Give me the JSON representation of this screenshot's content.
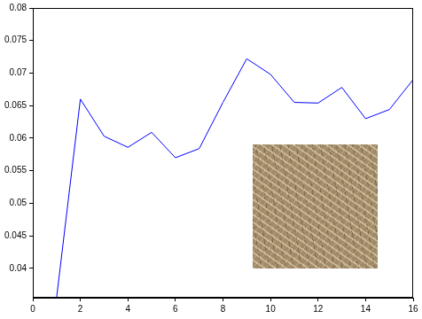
{
  "chart_data": {
    "type": "line",
    "x": [
      1,
      2,
      3,
      4,
      5,
      6,
      7,
      8,
      9,
      10,
      11,
      12,
      13,
      14,
      15,
      16
    ],
    "values": [
      0.0355,
      0.066,
      0.0603,
      0.0586,
      0.0609,
      0.057,
      0.0584,
      0.0655,
      0.0722,
      0.0698,
      0.0655,
      0.0654,
      0.0678,
      0.063,
      0.0644,
      0.069
    ],
    "color": "#0000ff",
    "xlim": [
      0,
      16
    ],
    "xticks": [
      0,
      2,
      4,
      6,
      8,
      10,
      12,
      14,
      16
    ],
    "ylim": [
      0.0355,
      0.08
    ],
    "yticks": [
      0.04,
      0.045,
      0.05,
      0.055,
      0.06,
      0.065,
      0.07,
      0.075,
      0.08
    ],
    "grid": false
  }
}
